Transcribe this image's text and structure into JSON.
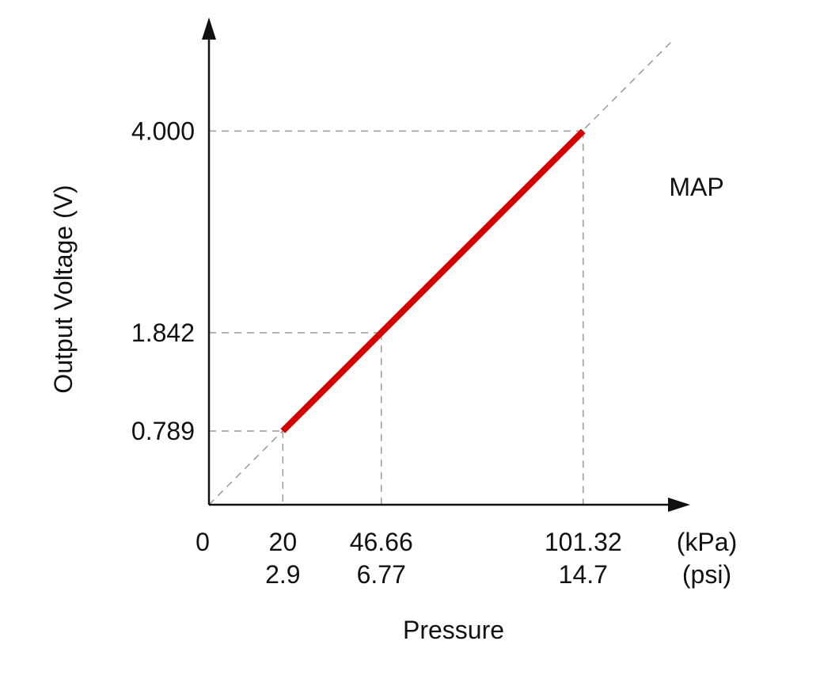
{
  "chart_data": {
    "type": "line",
    "annotation": "MAP",
    "xlabel": "Pressure",
    "ylabel": "Output Voltage (V)",
    "x_units": [
      "(kPa)",
      "(psi)"
    ],
    "origin_label": "0",
    "x_ticks": [
      {
        "kpa": 20,
        "kpa_label": "20",
        "psi_label": "2.9"
      },
      {
        "kpa": 46.66,
        "kpa_label": "46.66",
        "psi_label": "6.77"
      },
      {
        "kpa": 101.32,
        "kpa_label": "101.32",
        "psi_label": "14.7"
      }
    ],
    "y_ticks": [
      {
        "value": 0.789,
        "label": "0.789"
      },
      {
        "value": 1.842,
        "label": "1.842"
      },
      {
        "value": 4.0,
        "label": "4.000"
      }
    ],
    "series": [
      {
        "color": "#d40000",
        "x": [
          20,
          46.66,
          101.32
        ],
        "y": [
          0.789,
          1.842,
          4.0
        ]
      }
    ],
    "reference_line": {
      "style": "dashed",
      "color": "#9a9a9a",
      "passes_through_origin": true
    },
    "xlim": [
      0,
      115
    ],
    "ylim": [
      0,
      6
    ],
    "grid": false
  }
}
